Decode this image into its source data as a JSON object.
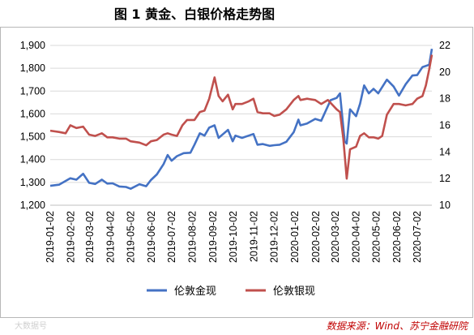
{
  "chart_data": {
    "type": "line",
    "title": "图 1  黄金、白银价格走势图",
    "source": "数据来源：Wind、苏宁金融研院",
    "watermark": "大数据号",
    "y_left": {
      "min": 1200,
      "max": 1900,
      "ticks": [
        "1,200",
        "1,300",
        "1,400",
        "1,500",
        "1,600",
        "1,700",
        "1,800",
        "1,900"
      ]
    },
    "y_right": {
      "min": 10,
      "max": 22,
      "ticks": [
        "10",
        "12",
        "14",
        "16",
        "18",
        "20",
        "22"
      ]
    },
    "x_ticks": [
      "2019-01-02",
      "2019-02-02",
      "2019-03-02",
      "2019-04-02",
      "2019-05-02",
      "2019-06-02",
      "2019-07-02",
      "2019-08-02",
      "2019-09-02",
      "2019-10-02",
      "2019-11-02",
      "2019-12-02",
      "2020-01-02",
      "2020-02-02",
      "2020-03-02",
      "2020-04-02",
      "2020-05-02",
      "2020-06-02",
      "2020-07-02"
    ],
    "grid": "horizontal",
    "legend_position": "bottom",
    "series": [
      {
        "name": "伦敦金现",
        "axis": "left",
        "color": "#4472c4",
        "points": [
          [
            "2019-01-02",
            1285
          ],
          [
            "2019-01-15",
            1290
          ],
          [
            "2019-02-01",
            1318
          ],
          [
            "2019-02-10",
            1312
          ],
          [
            "2019-02-20",
            1338
          ],
          [
            "2019-03-01",
            1298
          ],
          [
            "2019-03-10",
            1293
          ],
          [
            "2019-03-20",
            1312
          ],
          [
            "2019-03-28",
            1295
          ],
          [
            "2019-04-05",
            1296
          ],
          [
            "2019-04-15",
            1282
          ],
          [
            "2019-04-25",
            1280
          ],
          [
            "2019-05-02",
            1272
          ],
          [
            "2019-05-15",
            1292
          ],
          [
            "2019-05-25",
            1283
          ],
          [
            "2019-06-01",
            1310
          ],
          [
            "2019-06-10",
            1335
          ],
          [
            "2019-06-20",
            1380
          ],
          [
            "2019-06-26",
            1420
          ],
          [
            "2019-07-02",
            1395
          ],
          [
            "2019-07-10",
            1415
          ],
          [
            "2019-07-20",
            1428
          ],
          [
            "2019-07-30",
            1430
          ],
          [
            "2019-08-05",
            1465
          ],
          [
            "2019-08-13",
            1515
          ],
          [
            "2019-08-20",
            1505
          ],
          [
            "2019-08-27",
            1540
          ],
          [
            "2019-09-04",
            1550
          ],
          [
            "2019-09-10",
            1495
          ],
          [
            "2019-09-16",
            1510
          ],
          [
            "2019-09-24",
            1530
          ],
          [
            "2019-10-01",
            1480
          ],
          [
            "2019-10-05",
            1505
          ],
          [
            "2019-10-15",
            1495
          ],
          [
            "2019-10-25",
            1505
          ],
          [
            "2019-11-01",
            1512
          ],
          [
            "2019-11-07",
            1465
          ],
          [
            "2019-11-15",
            1468
          ],
          [
            "2019-11-25",
            1460
          ],
          [
            "2019-12-02",
            1463
          ],
          [
            "2019-12-10",
            1465
          ],
          [
            "2019-12-20",
            1478
          ],
          [
            "2019-12-31",
            1520
          ],
          [
            "2020-01-07",
            1575
          ],
          [
            "2020-01-10",
            1550
          ],
          [
            "2020-01-20",
            1558
          ],
          [
            "2020-02-01",
            1578
          ],
          [
            "2020-02-10",
            1570
          ],
          [
            "2020-02-24",
            1660
          ],
          [
            "2020-03-04",
            1670
          ],
          [
            "2020-03-09",
            1690
          ],
          [
            "2020-03-16",
            1480
          ],
          [
            "2020-03-19",
            1470
          ],
          [
            "2020-03-24",
            1620
          ],
          [
            "2020-04-02",
            1590
          ],
          [
            "2020-04-08",
            1645
          ],
          [
            "2020-04-14",
            1725
          ],
          [
            "2020-04-21",
            1690
          ],
          [
            "2020-04-28",
            1710
          ],
          [
            "2020-05-05",
            1690
          ],
          [
            "2020-05-18",
            1750
          ],
          [
            "2020-05-28",
            1720
          ],
          [
            "2020-06-05",
            1680
          ],
          [
            "2020-06-15",
            1730
          ],
          [
            "2020-06-25",
            1768
          ],
          [
            "2020-07-02",
            1770
          ],
          [
            "2020-07-10",
            1805
          ],
          [
            "2020-07-20",
            1815
          ],
          [
            "2020-07-24",
            1885
          ]
        ]
      },
      {
        "name": "伦敦银现",
        "axis": "right",
        "color": "#c0504d",
        "points": [
          [
            "2019-01-02",
            15.6
          ],
          [
            "2019-01-15",
            15.5
          ],
          [
            "2019-01-25",
            15.4
          ],
          [
            "2019-02-01",
            16.0
          ],
          [
            "2019-02-10",
            15.8
          ],
          [
            "2019-02-20",
            15.9
          ],
          [
            "2019-03-01",
            15.3
          ],
          [
            "2019-03-10",
            15.2
          ],
          [
            "2019-03-20",
            15.4
          ],
          [
            "2019-03-28",
            15.1
          ],
          [
            "2019-04-05",
            15.1
          ],
          [
            "2019-04-15",
            15.0
          ],
          [
            "2019-04-25",
            15.0
          ],
          [
            "2019-05-02",
            14.8
          ],
          [
            "2019-05-15",
            14.7
          ],
          [
            "2019-05-25",
            14.5
          ],
          [
            "2019-06-01",
            14.8
          ],
          [
            "2019-06-10",
            14.9
          ],
          [
            "2019-06-20",
            15.3
          ],
          [
            "2019-06-26",
            15.4
          ],
          [
            "2019-07-02",
            15.3
          ],
          [
            "2019-07-10",
            15.2
          ],
          [
            "2019-07-18",
            16.0
          ],
          [
            "2019-07-25",
            16.4
          ],
          [
            "2019-08-05",
            16.4
          ],
          [
            "2019-08-13",
            17.0
          ],
          [
            "2019-08-20",
            17.1
          ],
          [
            "2019-08-27",
            18.0
          ],
          [
            "2019-09-04",
            19.6
          ],
          [
            "2019-09-10",
            18.2
          ],
          [
            "2019-09-16",
            17.8
          ],
          [
            "2019-09-24",
            18.3
          ],
          [
            "2019-10-01",
            17.2
          ],
          [
            "2019-10-05",
            17.6
          ],
          [
            "2019-10-15",
            17.6
          ],
          [
            "2019-10-25",
            17.8
          ],
          [
            "2019-11-01",
            18.0
          ],
          [
            "2019-11-07",
            17.0
          ],
          [
            "2019-11-15",
            16.9
          ],
          [
            "2019-11-25",
            16.9
          ],
          [
            "2019-12-02",
            16.7
          ],
          [
            "2019-12-10",
            16.8
          ],
          [
            "2019-12-20",
            17.2
          ],
          [
            "2019-12-31",
            17.9
          ],
          [
            "2020-01-07",
            18.2
          ],
          [
            "2020-01-10",
            17.9
          ],
          [
            "2020-01-20",
            18.0
          ],
          [
            "2020-02-01",
            17.9
          ],
          [
            "2020-02-10",
            17.6
          ],
          [
            "2020-02-20",
            17.9
          ],
          [
            "2020-03-04",
            17.2
          ],
          [
            "2020-03-09",
            17.0
          ],
          [
            "2020-03-14",
            15.0
          ],
          [
            "2020-03-19",
            12.0
          ],
          [
            "2020-03-24",
            14.2
          ],
          [
            "2020-04-02",
            14.4
          ],
          [
            "2020-04-08",
            15.2
          ],
          [
            "2020-04-14",
            15.4
          ],
          [
            "2020-04-21",
            15.1
          ],
          [
            "2020-04-28",
            15.1
          ],
          [
            "2020-05-05",
            15.0
          ],
          [
            "2020-05-11",
            15.2
          ],
          [
            "2020-05-18",
            16.8
          ],
          [
            "2020-05-28",
            17.6
          ],
          [
            "2020-06-05",
            17.6
          ],
          [
            "2020-06-15",
            17.5
          ],
          [
            "2020-06-25",
            17.6
          ],
          [
            "2020-07-02",
            18.0
          ],
          [
            "2020-07-10",
            18.2
          ],
          [
            "2020-07-15",
            19.0
          ],
          [
            "2020-07-20",
            20.2
          ],
          [
            "2020-07-24",
            21.3
          ]
        ]
      }
    ]
  }
}
